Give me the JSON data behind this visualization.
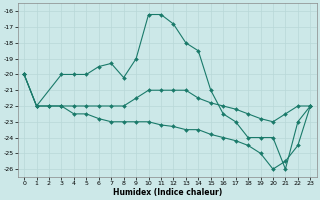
{
  "xlabel": "Humidex (Indice chaleur)",
  "xlim": [
    -0.5,
    23.5
  ],
  "ylim": [
    -26.5,
    -15.5
  ],
  "yticks": [
    -26,
    -25,
    -24,
    -23,
    -22,
    -21,
    -20,
    -19,
    -18,
    -17,
    -16
  ],
  "xticks": [
    0,
    1,
    2,
    3,
    4,
    5,
    6,
    7,
    8,
    9,
    10,
    11,
    12,
    13,
    14,
    15,
    16,
    17,
    18,
    19,
    20,
    21,
    22,
    23
  ],
  "bg_color": "#cce8e8",
  "grid_color": "#b8d8d8",
  "line_color": "#1a7a6a",
  "line1_x": [
    0,
    1,
    3,
    4,
    5,
    6,
    7,
    8,
    9,
    10,
    11,
    12,
    13,
    14,
    15,
    16,
    17,
    18,
    19,
    20,
    21,
    22,
    23
  ],
  "line1_y": [
    -20,
    -22,
    -20,
    -20,
    -20,
    -19.5,
    -19.3,
    -20.2,
    -19.0,
    -16.2,
    -16.2,
    -16.8,
    -18.0,
    -18.5,
    -21.0,
    -22.5,
    -23.0,
    -24.0,
    -24.0,
    -24.0,
    -26.0,
    -23.0,
    -22.0
  ],
  "line2_x": [
    0,
    1,
    2,
    3,
    4,
    5,
    6,
    7,
    8,
    9,
    10,
    11,
    12,
    13,
    14,
    15,
    16,
    17,
    18,
    19,
    20,
    21,
    22,
    23
  ],
  "line2_y": [
    -20,
    -22,
    -22,
    -22,
    -22,
    -22,
    -22,
    -22,
    -22,
    -21.5,
    -21.0,
    -21.0,
    -21.0,
    -21.0,
    -21.5,
    -21.8,
    -22.0,
    -22.2,
    -22.5,
    -22.8,
    -23.0,
    -22.5,
    -22.0,
    -22.0
  ],
  "line3_x": [
    0,
    1,
    2,
    3,
    4,
    5,
    6,
    7,
    8,
    9,
    10,
    11,
    12,
    13,
    14,
    15,
    16,
    17,
    18,
    19,
    20,
    21,
    22,
    23
  ],
  "line3_y": [
    -20,
    -22,
    -22,
    -22,
    -22.5,
    -22.5,
    -22.8,
    -23.0,
    -23.0,
    -23.0,
    -23.0,
    -23.2,
    -23.3,
    -23.5,
    -23.5,
    -23.8,
    -24.0,
    -24.2,
    -24.5,
    -25.0,
    -26.0,
    -25.5,
    -24.5,
    -22.0
  ]
}
